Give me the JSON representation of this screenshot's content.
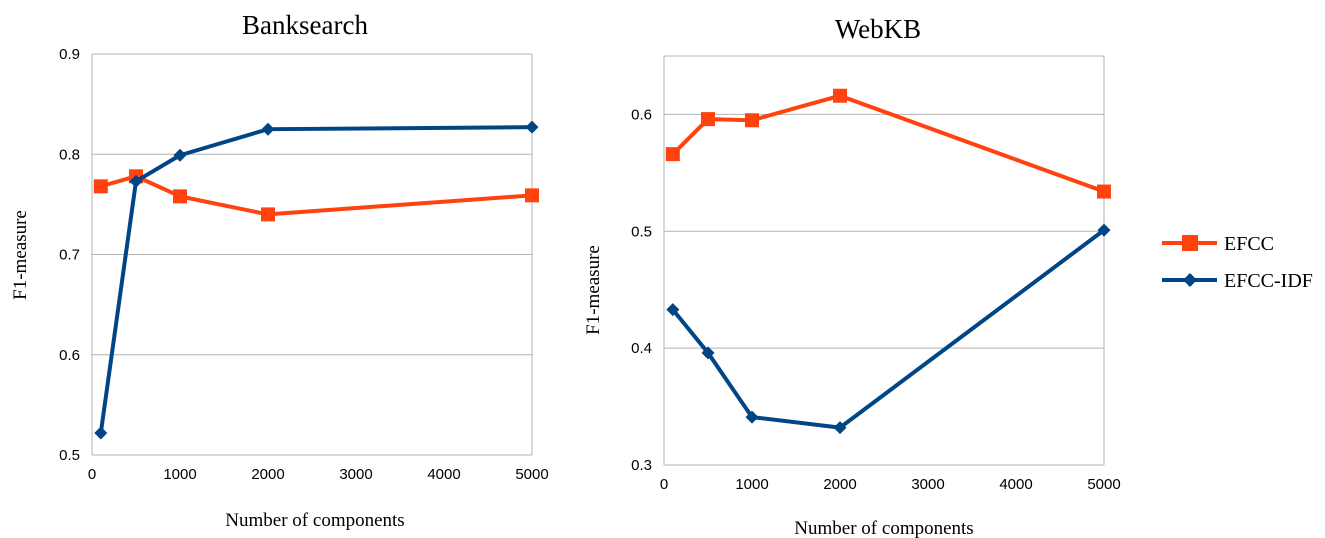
{
  "legend": {
    "position": "right",
    "entries": [
      {
        "name": "EFCC",
        "color": "#ff420e",
        "marker": "square"
      },
      {
        "name": "EFCC-IDF",
        "color": "#004586",
        "marker": "diamond"
      }
    ]
  },
  "chart_data": [
    {
      "type": "line",
      "title": "Banksearch",
      "xlabel": "Number of components",
      "ylabel": "F1-measure",
      "xlim": [
        0,
        5000
      ],
      "ylim": [
        0.5,
        0.9
      ],
      "xticks": [
        0,
        1000,
        2000,
        3000,
        4000,
        5000
      ],
      "xtick_labels": [
        "0",
        "1000",
        "2000",
        "3000",
        "4000",
        "5000"
      ],
      "yticks": [
        0.5,
        0.6,
        0.7,
        0.8,
        0.9
      ],
      "ytick_labels": [
        "0.5",
        "0.6",
        "0.7",
        "0.8",
        "0.9"
      ],
      "grid": "horizontal",
      "x": [
        100,
        500,
        1000,
        2000,
        5000
      ],
      "series": [
        {
          "name": "EFCC",
          "color": "#ff420e",
          "marker": "square",
          "values": [
            0.768,
            0.778,
            0.758,
            0.74,
            0.759
          ]
        },
        {
          "name": "EFCC-IDF",
          "color": "#004586",
          "marker": "diamond",
          "values": [
            0.522,
            0.773,
            0.799,
            0.825,
            0.827
          ]
        }
      ]
    },
    {
      "type": "line",
      "title": "WebKB",
      "xlabel": "Number of components",
      "ylabel": "F1-measure",
      "xlim": [
        0,
        5000
      ],
      "ylim": [
        0.3,
        0.65
      ],
      "xticks": [
        0,
        1000,
        2000,
        3000,
        4000,
        5000
      ],
      "xtick_labels": [
        "0",
        "1000",
        "2000",
        "3000",
        "4000",
        "5000"
      ],
      "yticks": [
        0.3,
        0.4,
        0.5,
        0.6
      ],
      "ytick_labels": [
        "0.3",
        "0.4",
        "0.5",
        "0.6"
      ],
      "grid": "horizontal",
      "x": [
        100,
        500,
        1000,
        2000,
        5000
      ],
      "series": [
        {
          "name": "EFCC",
          "color": "#ff420e",
          "marker": "square",
          "values": [
            0.566,
            0.596,
            0.595,
            0.616,
            0.534
          ]
        },
        {
          "name": "EFCC-IDF",
          "color": "#004586",
          "marker": "diamond",
          "values": [
            0.433,
            0.396,
            0.341,
            0.332,
            0.501
          ]
        }
      ]
    }
  ]
}
